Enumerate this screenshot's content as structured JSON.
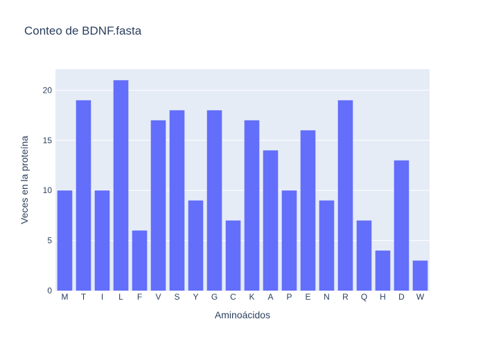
{
  "chart_data": {
    "type": "bar",
    "title": "Conteo de BDNF.fasta",
    "xlabel": "Aminoácidos",
    "ylabel": "Veces en la proteína",
    "categories": [
      "M",
      "T",
      "I",
      "L",
      "F",
      "V",
      "S",
      "Y",
      "G",
      "C",
      "K",
      "A",
      "P",
      "E",
      "N",
      "R",
      "Q",
      "H",
      "D",
      "W"
    ],
    "values": [
      10,
      19,
      10,
      21,
      6,
      17,
      18,
      9,
      18,
      7,
      17,
      14,
      10,
      16,
      9,
      19,
      7,
      4,
      13,
      3
    ],
    "ylim": [
      0,
      22.1
    ],
    "yticks": [
      0,
      5,
      10,
      15,
      20
    ],
    "grid": true,
    "legend": "none",
    "colors": {
      "bar": "#636efa",
      "plot_bg": "#e5ecf6",
      "grid": "#ffffff",
      "text": "#2a3f5f"
    }
  }
}
